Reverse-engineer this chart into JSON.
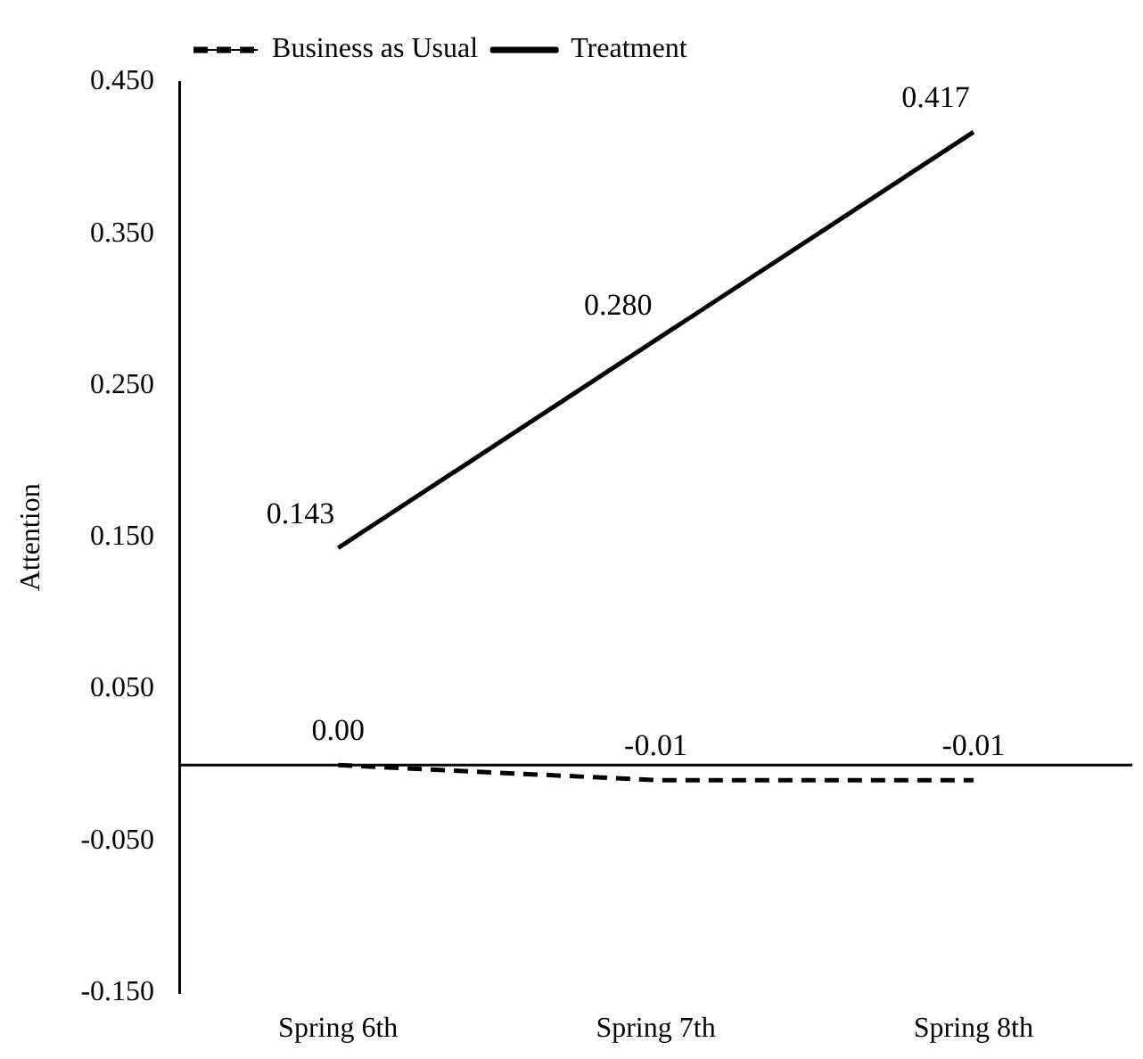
{
  "chart_data": {
    "type": "line",
    "ylabel": "Attention",
    "categories": [
      "Spring 6th",
      "Spring 7th",
      "Spring 8th"
    ],
    "series": [
      {
        "name": "Business as Usual",
        "color": "#000000",
        "line_style": "dashed",
        "values": [
          0.0,
          -0.01,
          -0.01
        ],
        "value_labels": [
          "0.00",
          "-0.01",
          "-0.01"
        ]
      },
      {
        "name": "Treatment",
        "color": "#000000",
        "line_style": "solid",
        "values": [
          0.143,
          0.28,
          0.417
        ],
        "value_labels": [
          "0.143",
          "0.280",
          "0.417"
        ]
      }
    ],
    "ylim": [
      -0.15,
      0.45
    ],
    "yticks": [
      {
        "value": -0.15,
        "label": "-0.150"
      },
      {
        "value": -0.05,
        "label": "-0.050"
      },
      {
        "value": 0.05,
        "label": "0.050"
      },
      {
        "value": 0.15,
        "label": "0.150"
      },
      {
        "value": 0.25,
        "label": "0.250"
      },
      {
        "value": 0.35,
        "label": "0.350"
      },
      {
        "value": 0.45,
        "label": "0.450"
      }
    ],
    "grid": false,
    "legend": "top left",
    "marker": "none"
  }
}
